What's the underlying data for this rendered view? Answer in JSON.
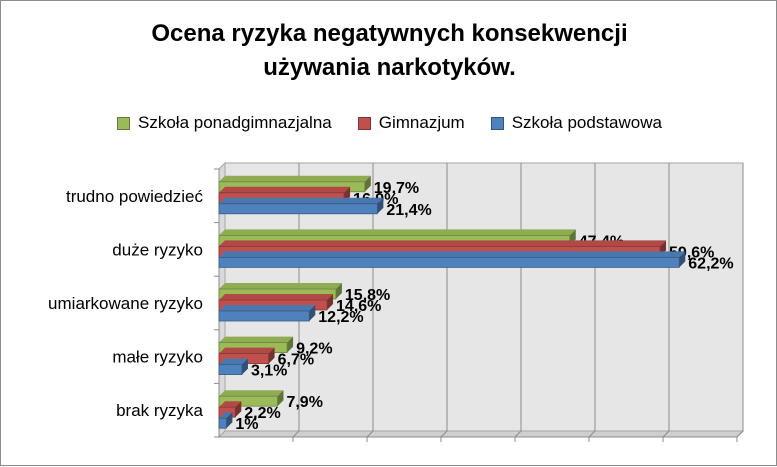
{
  "chart_data": {
    "type": "bar",
    "orientation": "horizontal",
    "title": "Ocena ryzyka negatywnych konsekwencji używania narkotyków.",
    "title_lines": [
      "Ocena ryzyka negatywnych konsekwencji",
      "używania narkotyków."
    ],
    "categories": [
      "trudno powiedzieć",
      "duże ryzyko",
      "umiarkowane ryzyko",
      "małe ryzyko",
      "brak ryzyka"
    ],
    "series": [
      {
        "name": "Szkoła ponadgimnazjalna",
        "color": "#9bbb59",
        "values": [
          19.7,
          47.4,
          15.8,
          9.2,
          7.9
        ],
        "labels": [
          "19,7%",
          "47,4%",
          "15,8%",
          "9,2%",
          "7,9%"
        ]
      },
      {
        "name": "Gimnazjum",
        "color": "#c0504d",
        "values": [
          16.9,
          59.6,
          14.6,
          6.7,
          2.2
        ],
        "labels": [
          "16,9%",
          "59,6%",
          "14,6%",
          "6,7%",
          "2,2%"
        ]
      },
      {
        "name": "Szkoła podstawowa",
        "color": "#4f81bd",
        "values": [
          21.4,
          62.2,
          12.2,
          3.1,
          1
        ],
        "labels": [
          "21,4%",
          "62,2%",
          "12,2%",
          "3,1%",
          "1%"
        ]
      }
    ],
    "xlim": [
      0,
      70
    ],
    "grid": true,
    "legend_position": "top",
    "value_axis_labels_shown": false
  }
}
